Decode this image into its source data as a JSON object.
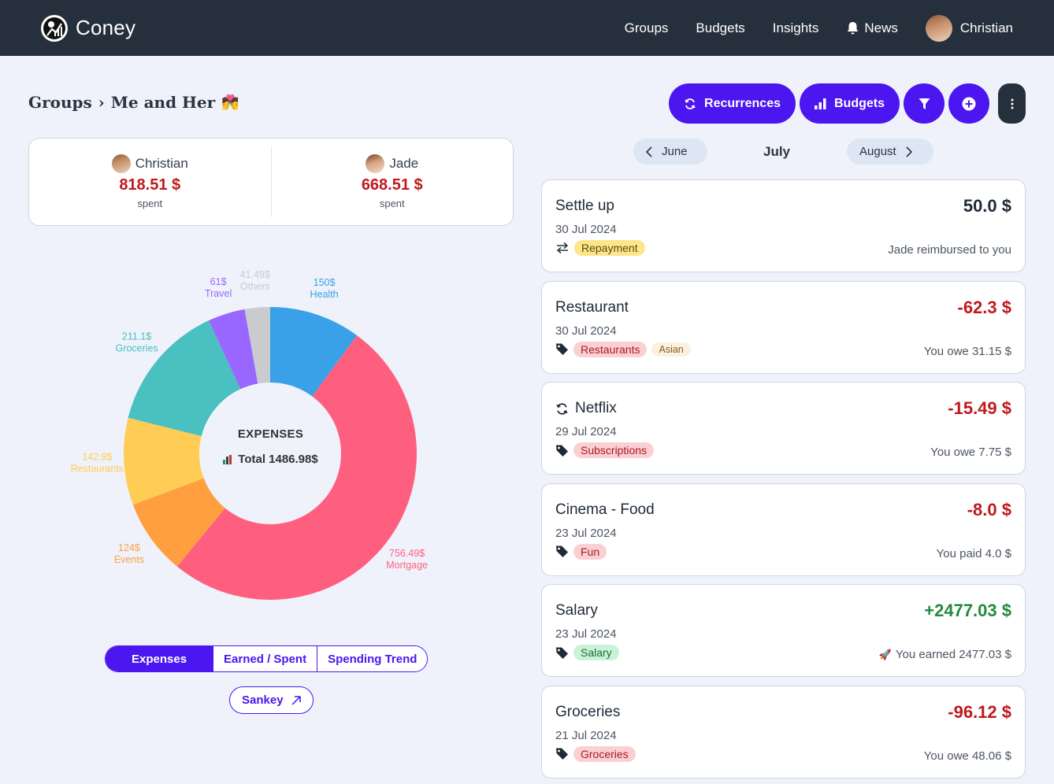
{
  "app": {
    "name": "Coney"
  },
  "nav": {
    "items": [
      {
        "label": "Groups",
        "icon": ""
      },
      {
        "label": "Budgets",
        "icon": ""
      },
      {
        "label": "Insights",
        "icon": ""
      },
      {
        "label": "News",
        "icon": "bell-icon"
      }
    ],
    "user": "Christian"
  },
  "breadcrumb": {
    "root": "Groups",
    "separator": "›",
    "current": "Me and Her",
    "emoji": "💏"
  },
  "actions": {
    "recurrences_label": "Recurrences",
    "budgets_label": "Budgets"
  },
  "members": [
    {
      "name": "Christian",
      "amount": "818.51 $",
      "label": "spent"
    },
    {
      "name": "Jade",
      "amount": "668.51 $",
      "label": "spent"
    }
  ],
  "chart_data": {
    "type": "pie",
    "title": "EXPENSES",
    "total_label": "Total 1486.98$",
    "slices": [
      {
        "name": "Health",
        "value": 150,
        "label": "150$",
        "color": "#3aa0e8"
      },
      {
        "name": "Mortgage",
        "value": 756.49,
        "label": "756.49$",
        "color": "#ff5f7e"
      },
      {
        "name": "Events",
        "value": 124,
        "label": "124$",
        "color": "#ff9f40"
      },
      {
        "name": "Restaurants",
        "value": 142.9,
        "label": "142.9$",
        "color": "#ffcd56"
      },
      {
        "name": "Groceries",
        "value": 211.1,
        "label": "211.1$",
        "color": "#4bc0c0"
      },
      {
        "name": "Travel",
        "value": 61,
        "label": "61$",
        "color": "#9966ff"
      },
      {
        "name": "Others",
        "value": 41.49,
        "label": "41.49$",
        "color": "#c9cbcf"
      }
    ]
  },
  "chart_tabs": [
    {
      "label": "Expenses",
      "active": true
    },
    {
      "label": "Earned / Spent",
      "active": false
    },
    {
      "label": "Spending Trend",
      "active": false
    }
  ],
  "sankey": {
    "label": "Sankey",
    "icon": "arrow-up-right-icon"
  },
  "months": {
    "prev": "June",
    "current": "July",
    "next": "August"
  },
  "transactions": [
    {
      "title": "Settle up",
      "date": "30 Jul 2024",
      "icon": "swap-arrows-icon",
      "tags": [
        {
          "label": "Repayment",
          "style": "yellow"
        }
      ],
      "amount": "50.0 $",
      "sign": "neutral",
      "note": "Jade reimbursed to you",
      "recurring": false
    },
    {
      "title": "Restaurant",
      "date": "30 Jul 2024",
      "icon": "tag-icon",
      "tags": [
        {
          "label": "Restaurants",
          "style": "red"
        },
        {
          "label": "Asian",
          "style": "sub"
        }
      ],
      "amount": "-62.3 $",
      "sign": "neg",
      "note": "You owe 31.15 $",
      "recurring": false
    },
    {
      "title": "Netflix",
      "date": "29 Jul 2024",
      "icon": "tag-icon",
      "tags": [
        {
          "label": "Subscriptions",
          "style": "red"
        }
      ],
      "amount": "-15.49 $",
      "sign": "neg",
      "note": "You owe 7.75 $",
      "recurring": true
    },
    {
      "title": "Cinema - Food",
      "date": "23 Jul 2024",
      "icon": "tag-icon",
      "tags": [
        {
          "label": "Fun",
          "style": "red"
        }
      ],
      "amount": "-8.0 $",
      "sign": "neg",
      "note": "You paid 4.0 $",
      "recurring": false
    },
    {
      "title": "Salary",
      "date": "23 Jul 2024",
      "icon": "tag-icon",
      "tags": [
        {
          "label": "Salary",
          "style": "green"
        }
      ],
      "amount": "+2477.03 $",
      "sign": "pos",
      "note": "You earned 2477.03 $",
      "note_emoji": "🚀",
      "recurring": false
    },
    {
      "title": "Groceries",
      "date": "21 Jul 2024",
      "icon": "tag-icon",
      "tags": [
        {
          "label": "Groceries",
          "style": "red"
        }
      ],
      "amount": "-96.12 $",
      "sign": "neg",
      "note": "You owe 48.06 $",
      "recurring": false
    }
  ]
}
